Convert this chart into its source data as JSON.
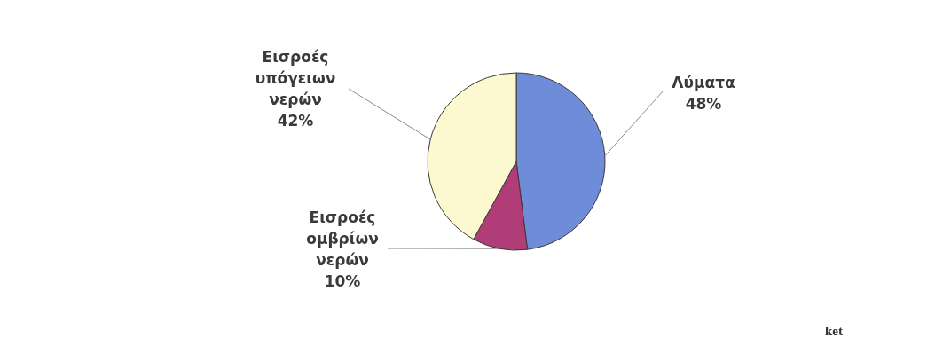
{
  "chart_data": {
    "type": "pie",
    "categories": [
      "Λύματα",
      "Εισροές ομβρίων νερών",
      "Εισροές υπόγειων νερών"
    ],
    "values": [
      48,
      10,
      42
    ],
    "colors": [
      "#6e8cd7",
      "#b03d78",
      "#fcf9d0"
    ],
    "value_labels": [
      "48%",
      "10%",
      "42%"
    ],
    "annotations": [
      "ket"
    ]
  }
}
